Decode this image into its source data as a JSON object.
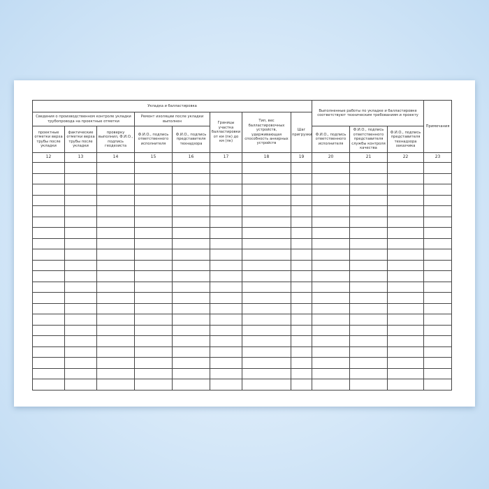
{
  "form": {
    "group_laying": "Укладка и балластировка",
    "group_completed": "Выполненные работы по укладке и балластировке соответствуют техническим требованиям и проекту",
    "remarks": "Примечания",
    "sub_production_control": "Сведения о производственном контроле укладки трубопровода на проектные отметки",
    "sub_insulation_repair": "Ремонт изоляции после укладки выполнен",
    "col_boundaries": "Границы участка балластировки от км (пк) до км (пк)",
    "col_type_weight": "Тип, вес балластировочных устройств, удерживающая способность анкерных устройств",
    "col_step": "Шаг пригрузки",
    "col_design_marks": "проектные отметки верха трубы после укладки",
    "col_actual_marks": "фактические отметки верха трубы после укладки",
    "col_check": "проверку выполнил, Ф.И.О., подпись геодезиста",
    "col_repair_executor": "Ф.И.О., подпись ответственного исполнителя",
    "col_repair_supervision": "Ф.И.О., подпись представителя технадзора",
    "col_done_executor": "Ф.И.О., подпись ответственного исполнителя",
    "col_done_quality": "Ф.И.О., подпись ответственного представителя службы контроля качества",
    "col_done_customer": "Ф.И.О., подпись представителя технадзора заказчика",
    "column_numbers": [
      "12",
      "13",
      "14",
      "15",
      "16",
      "17",
      "18",
      "19",
      "20",
      "21",
      "22",
      "23"
    ]
  }
}
